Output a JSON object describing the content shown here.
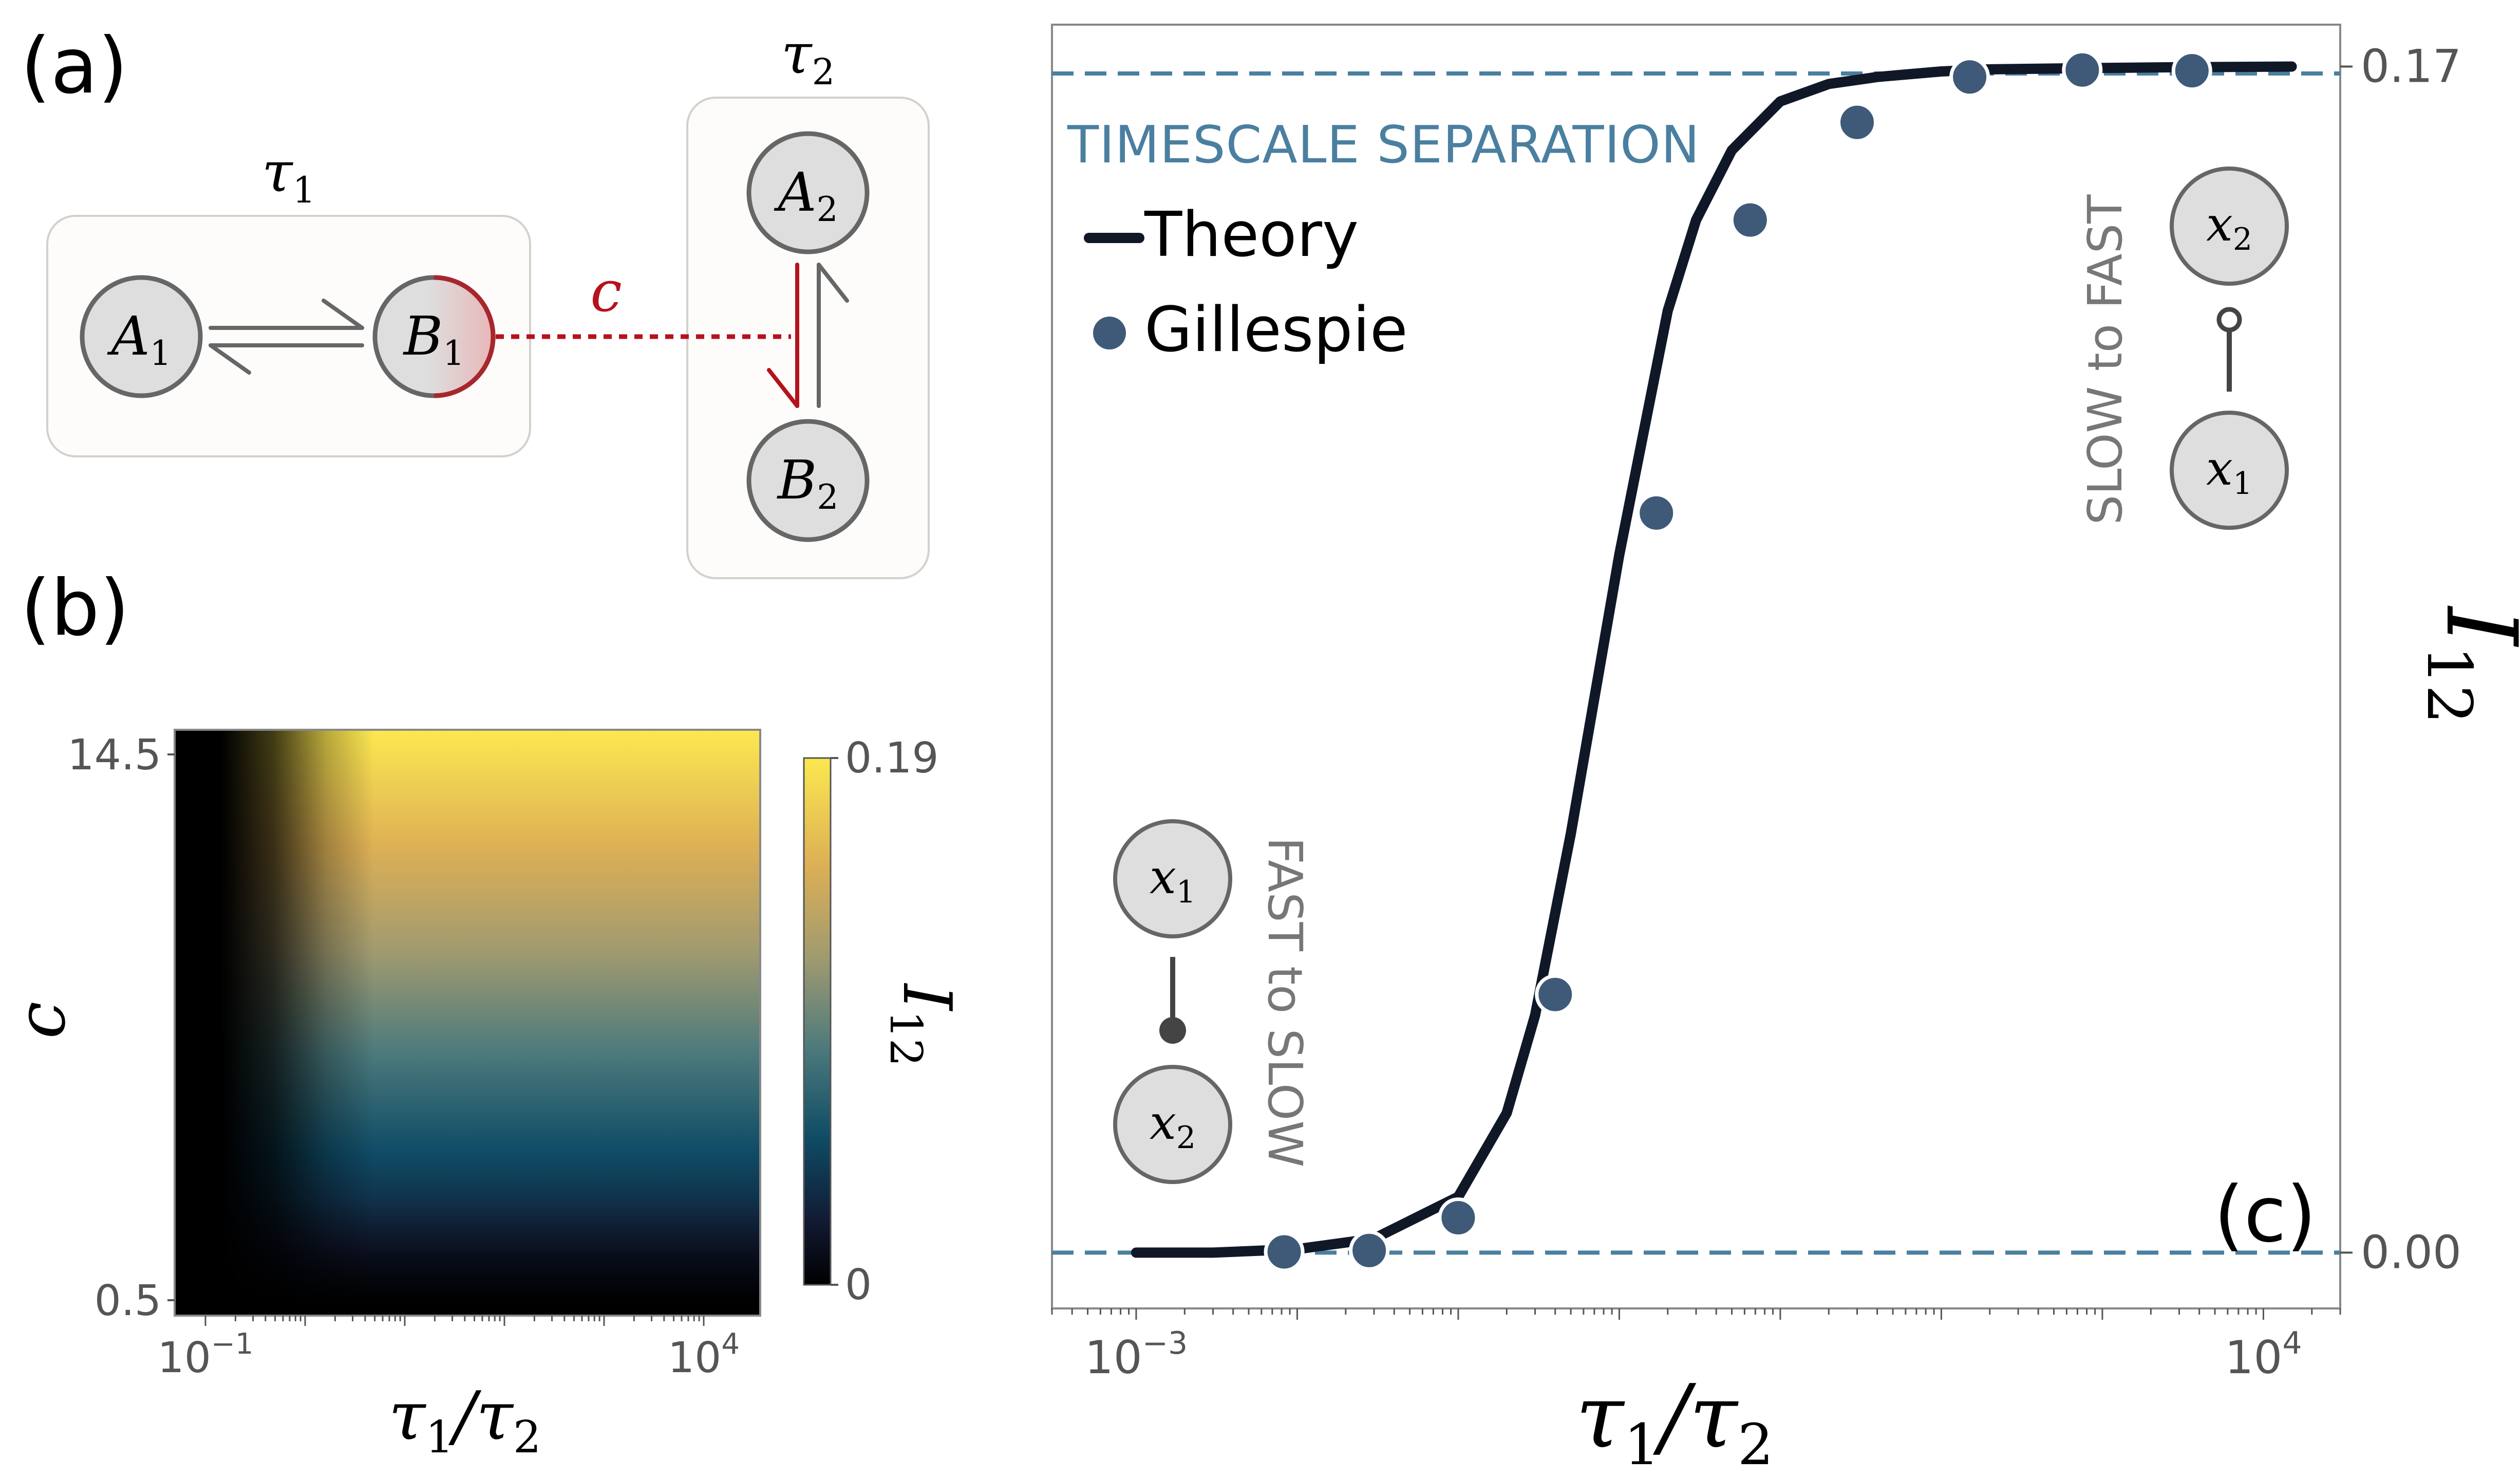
{
  "panels": {
    "a": {
      "label": "(a)"
    },
    "b": {
      "label": "(b)"
    },
    "c": {
      "label": "(c)"
    }
  },
  "schematic": {
    "tau1": "τ",
    "tau1_sub": "1",
    "tau2": "τ",
    "tau2_sub": "2",
    "nodes": {
      "A1": {
        "main": "A",
        "sub": "1"
      },
      "B1": {
        "main": "B",
        "sub": "1"
      },
      "A2": {
        "main": "A",
        "sub": "2"
      },
      "B2": {
        "main": "B",
        "sub": "2"
      }
    },
    "coupling": "c"
  },
  "colors": {
    "theory": "#101828",
    "gillespie": "#3f5a78",
    "dashed": "#4a7fa0",
    "annotation": "#777777",
    "coupling": "#b5121b",
    "node_fill": "#dedede",
    "node_stroke": "#666666"
  },
  "chart_data": [
    {
      "type": "heatmap",
      "panel": "(b)",
      "xlabel": "τ1/τ2",
      "ylabel": "c",
      "x_scale": "log",
      "xlim": [
        0.1,
        10000
      ],
      "ylim": [
        0.5,
        14.5
      ],
      "x_tick_labels": {
        "low": "10",
        "low_exp": "−1",
        "high": "10",
        "high_exp": "4"
      },
      "y_tick_labels": [
        "0.5",
        "14.5"
      ],
      "colorbar": {
        "label": "I12",
        "label_main": "I",
        "label_sub": "12",
        "min": 0,
        "max": 0.19,
        "min_label": "0",
        "max_label": "0.19"
      }
    },
    {
      "type": "line",
      "panel": "(c)",
      "xlabel": "τ1/τ2",
      "ylabel": "I12",
      "x_scale": "log",
      "xlim": [
        0.0003,
        30000
      ],
      "ylim": [
        -0.008,
        0.176
      ],
      "x_tick_labels": {
        "low": "10",
        "low_exp": "−3",
        "high": "10",
        "high_exp": "4"
      },
      "y_ticks": [
        0.0,
        0.17
      ],
      "y_tick_labels": [
        "0.00",
        "0.17"
      ],
      "legend_position": "top-left",
      "series": [
        {
          "name": "Theory",
          "kind": "line",
          "x": [
            0.001,
            0.003,
            0.01,
            0.03,
            0.1,
            0.2,
            0.3,
            0.5,
            1,
            2,
            3,
            5,
            10,
            20,
            40,
            100,
            200,
            1000,
            3000,
            15000
          ],
          "y": [
            0.0,
            0.0,
            0.0005,
            0.002,
            0.008,
            0.02,
            0.034,
            0.06,
            0.1,
            0.135,
            0.148,
            0.158,
            0.165,
            0.1675,
            0.1685,
            0.1693,
            0.1696,
            0.1698,
            0.1699,
            0.17
          ]
        },
        {
          "name": "Gillespie",
          "kind": "scatter",
          "x": [
            0.0083,
            0.028,
            0.1,
            0.4,
            1.7,
            6.5,
            30,
            150,
            750,
            3600
          ],
          "y": [
            0.0001,
            0.0003,
            0.005,
            0.037,
            0.106,
            0.148,
            0.162,
            0.1685,
            0.1695,
            0.1694
          ]
        }
      ],
      "reference_lines": [
        {
          "y": 0.169,
          "label": "TIMESCALE SEPARATION"
        },
        {
          "y": 0.0
        }
      ],
      "annotations": {
        "left": {
          "text": "FAST to SLOW",
          "top_node_main": "x",
          "top_node_sub": "1",
          "bottom_node_main": "x",
          "bottom_node_sub": "2"
        },
        "right": {
          "text": "SLOW to FAST",
          "top_node_main": "x",
          "top_node_sub": "2",
          "bottom_node_main": "x",
          "bottom_node_sub": "1"
        }
      }
    }
  ]
}
